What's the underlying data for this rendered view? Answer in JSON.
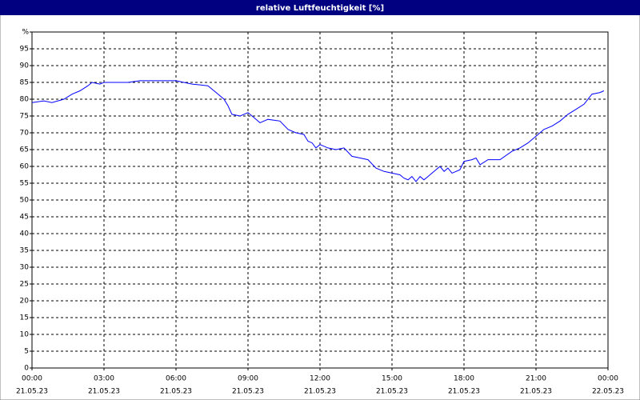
{
  "chart_data": {
    "type": "line",
    "title": "relative Luftfeuchtigkeit [%]",
    "x": [
      0,
      0.5,
      0.83,
      1.33,
      1.67,
      2,
      2.33,
      2.5,
      2.83,
      3,
      3.5,
      4,
      4.5,
      5,
      5.5,
      6,
      6.33,
      6.67,
      7.33,
      7.67,
      8,
      8.17,
      8.33,
      8.67,
      9,
      9.17,
      9.5,
      9.83,
      10.33,
      10.67,
      11,
      11.33,
      11.5,
      11.67,
      11.83,
      12,
      12.33,
      12.67,
      13,
      13.33,
      13.67,
      14,
      14.33,
      14.67,
      15,
      15.33,
      15.5,
      15.67,
      15.83,
      16,
      16.17,
      16.33,
      16.5,
      16.83,
      17,
      17.17,
      17.33,
      17.5,
      17.83,
      18,
      18.33,
      18.5,
      18.67,
      19,
      19.5,
      20,
      20.33,
      20.67,
      21,
      21.33,
      21.67,
      22,
      22.33,
      22.67,
      23,
      23.33,
      23.67,
      23.83
    ],
    "series": [
      {
        "color": "#0000ff",
        "values": [
          79,
          79.5,
          79,
          80,
          81.5,
          82.5,
          84,
          85,
          84.5,
          85,
          85,
          85,
          85.5,
          85.5,
          85.5,
          85.5,
          85,
          84.5,
          84,
          82,
          80,
          78,
          75.5,
          75,
          76,
          75,
          73,
          74,
          73.5,
          71,
          70,
          69.5,
          67.5,
          67,
          65.5,
          66.5,
          65.5,
          65,
          65.5,
          63,
          62.5,
          62,
          59.5,
          58.5,
          58,
          57.5,
          56.5,
          56,
          57,
          55.5,
          57,
          56,
          57,
          59,
          60,
          58.5,
          59.5,
          58,
          59,
          61.5,
          62,
          62.5,
          60.5,
          62,
          62,
          64.5,
          65.5,
          67,
          69,
          71,
          72,
          73.5,
          75.5,
          77,
          78.5,
          81.5,
          82,
          82.5
        ]
      }
    ],
    "xlim": [
      0,
      24
    ],
    "xticks": [
      {
        "value": 0,
        "label": "00:00",
        "date": "21.05.23"
      },
      {
        "value": 3,
        "label": "03:00",
        "date": "21.05.23"
      },
      {
        "value": 6,
        "label": "06:00",
        "date": "21.05.23"
      },
      {
        "value": 9,
        "label": "09:00",
        "date": "21.05.23"
      },
      {
        "value": 12,
        "label": "12:00",
        "date": "21.05.23"
      },
      {
        "value": 15,
        "label": "15:00",
        "date": "21.05.23"
      },
      {
        "value": 18,
        "label": "18:00",
        "date": "21.05.23"
      },
      {
        "value": 21,
        "label": "21:00",
        "date": "21.05.23"
      },
      {
        "value": 24,
        "label": "00:00",
        "date": "22.05.23"
      }
    ],
    "ylim": [
      0,
      100
    ],
    "yticks": [
      0,
      5,
      10,
      15,
      20,
      25,
      30,
      35,
      40,
      45,
      50,
      55,
      60,
      65,
      70,
      75,
      80,
      85,
      90,
      95,
      {
        "value": 100,
        "label": "%"
      }
    ],
    "grid": true
  }
}
